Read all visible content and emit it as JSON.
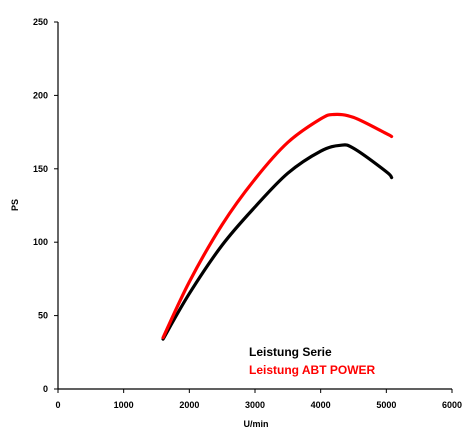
{
  "chart_data": {
    "type": "line",
    "title": "",
    "xlabel": "U/min",
    "ylabel": "PS",
    "xlim": [
      0,
      6000
    ],
    "ylim": [
      0,
      250
    ],
    "x_ticks": [
      "0",
      "1000",
      "2000",
      "3000",
      "4000",
      "5000",
      "6000"
    ],
    "y_ticks": [
      "0",
      "50",
      "100",
      "150",
      "200",
      "250"
    ],
    "grid": false,
    "legend_position": "bottom-right",
    "series": [
      {
        "name": "Leistung Serie",
        "color": "#000000",
        "x": [
          1600,
          2000,
          2500,
          3000,
          3500,
          4000,
          4300,
          4500,
          5000,
          5080
        ],
        "y": [
          34,
          65,
          98,
          124,
          147,
          162,
          166,
          164,
          148,
          144
        ]
      },
      {
        "name": "Leistung ABT POWER",
        "color": "#ff0000",
        "x": [
          1600,
          2000,
          2500,
          3000,
          3500,
          4000,
          4200,
          4500,
          5000,
          5080
        ],
        "y": [
          35,
          73,
          112,
          143,
          168,
          184,
          187,
          185,
          174,
          172
        ]
      }
    ]
  }
}
